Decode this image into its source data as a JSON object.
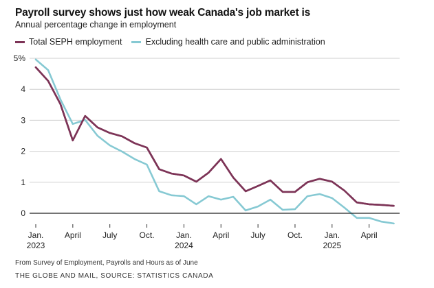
{
  "header": {
    "title": "Payroll survey shows just how weak Canada's job market is",
    "subtitle": "Annual percentage change in employment"
  },
  "legend": [
    {
      "label": "Total SEPH employment",
      "color": "#7d3457"
    },
    {
      "label": "Excluding health care and public administration",
      "color": "#86c9d3"
    }
  ],
  "footer": {
    "note": "From Survey of Employment, Payrolls and Hours as of June",
    "credit": "THE GLOBE AND MAIL, SOURCE: STATISTICS CANADA"
  },
  "chart_data": {
    "type": "line",
    "title": "Payroll survey shows just how weak Canada's job market is",
    "subtitle": "Annual percentage change in employment",
    "xlabel": "",
    "ylabel": "",
    "ylim": [
      0,
      5
    ],
    "y_ticks": [
      {
        "value": 5,
        "label": "5%"
      },
      {
        "value": 4,
        "label": "4"
      },
      {
        "value": 3,
        "label": "3"
      },
      {
        "value": 2,
        "label": "2"
      },
      {
        "value": 1,
        "label": "1"
      },
      {
        "value": 0,
        "label": "0"
      }
    ],
    "grid": true,
    "legend_position": "top-left",
    "x": [
      "2023-01",
      "2023-02",
      "2023-03",
      "2023-04",
      "2023-05",
      "2023-06",
      "2023-07",
      "2023-08",
      "2023-09",
      "2023-10",
      "2023-11",
      "2023-12",
      "2024-01",
      "2024-02",
      "2024-03",
      "2024-04",
      "2024-05",
      "2024-06",
      "2024-07",
      "2024-08",
      "2024-09",
      "2024-10",
      "2024-11",
      "2024-12",
      "2025-01",
      "2025-02",
      "2025-03",
      "2025-04",
      "2025-05",
      "2025-06"
    ],
    "x_ticks": [
      {
        "index": 0,
        "label": "Jan.",
        "year": "2023"
      },
      {
        "index": 3,
        "label": "April",
        "year": ""
      },
      {
        "index": 6,
        "label": "July",
        "year": ""
      },
      {
        "index": 9,
        "label": "Oct.",
        "year": ""
      },
      {
        "index": 12,
        "label": "Jan.",
        "year": "2024"
      },
      {
        "index": 15,
        "label": "April",
        "year": ""
      },
      {
        "index": 18,
        "label": "July",
        "year": ""
      },
      {
        "index": 21,
        "label": "Oct.",
        "year": ""
      },
      {
        "index": 24,
        "label": "Jan.",
        "year": "2025"
      },
      {
        "index": 27,
        "label": "April",
        "year": ""
      }
    ],
    "series": [
      {
        "name": "Total SEPH employment",
        "color": "#7d3457",
        "values": [
          4.71,
          4.27,
          3.52,
          2.35,
          3.14,
          2.77,
          2.59,
          2.48,
          2.26,
          2.12,
          1.42,
          1.28,
          1.22,
          1.02,
          1.31,
          1.75,
          1.15,
          0.71,
          0.88,
          1.06,
          0.69,
          0.69,
          1.0,
          1.11,
          1.02,
          0.73,
          0.35,
          0.29,
          0.27,
          0.24
        ]
      },
      {
        "name": "Excluding health care and public administration",
        "color": "#86c9d3",
        "values": [
          4.96,
          4.62,
          3.67,
          2.88,
          3.01,
          2.5,
          2.19,
          1.99,
          1.75,
          1.57,
          0.71,
          0.58,
          0.55,
          0.29,
          0.55,
          0.44,
          0.53,
          0.09,
          0.22,
          0.44,
          0.11,
          0.13,
          0.55,
          0.62,
          0.49,
          0.18,
          -0.15,
          -0.15,
          -0.27,
          -0.33
        ]
      }
    ]
  }
}
